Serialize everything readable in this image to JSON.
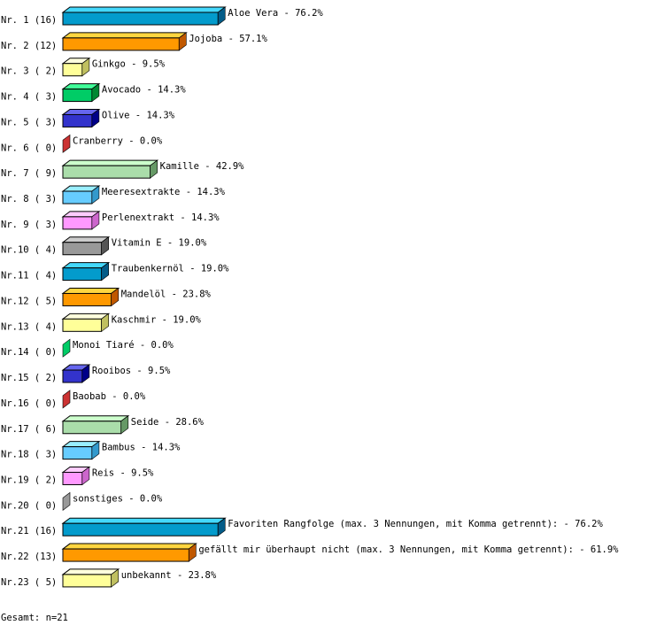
{
  "chart_data": {
    "type": "bar",
    "orientation": "horizontal",
    "style": "3d",
    "unit": "%",
    "categories": [
      "Aloe Vera",
      "Jojoba",
      "Ginkgo",
      "Avocado",
      "Olive",
      "Cranberry",
      "Kamille",
      "Meeresextrakte",
      "Perlenextrakt",
      "Vitamin E",
      "Traubenkernöl",
      "Mandelöl",
      "Kaschmir",
      "Monoi Tiaré",
      "Rooibos",
      "Baobab",
      "Seide",
      "Bambus",
      "Reis",
      "sonstiges",
      "Favoriten Rangfolge (max. 3 Nennungen, mit Komma getrennt):",
      "gefällt mir überhaupt nicht (max. 3 Nennungen, mit Komma getrennt):",
      "unbekannt"
    ],
    "row_labels": [
      "Nr. 1 (16)",
      "Nr. 2 (12)",
      "Nr. 3 ( 2)",
      "Nr. 4 ( 3)",
      "Nr. 5 ( 3)",
      "Nr. 6 ( 0)",
      "Nr. 7 ( 9)",
      "Nr. 8 ( 3)",
      "Nr. 9 ( 3)",
      "Nr.10 ( 4)",
      "Nr.11 ( 4)",
      "Nr.12 ( 5)",
      "Nr.13 ( 4)",
      "Nr.14 ( 0)",
      "Nr.15 ( 2)",
      "Nr.16 ( 0)",
      "Nr.17 ( 6)",
      "Nr.18 ( 3)",
      "Nr.19 ( 2)",
      "Nr.20 ( 0)",
      "Nr.21 (16)",
      "Nr.22 (13)",
      "Nr.23 ( 5)"
    ],
    "counts": [
      16,
      12,
      2,
      3,
      3,
      0,
      9,
      3,
      3,
      4,
      4,
      5,
      4,
      0,
      2,
      0,
      6,
      3,
      2,
      0,
      16,
      13,
      5
    ],
    "values": [
      76.2,
      57.1,
      9.5,
      14.3,
      14.3,
      0.0,
      42.9,
      14.3,
      14.3,
      19.0,
      19.0,
      23.8,
      19.0,
      0.0,
      9.5,
      0.0,
      28.6,
      14.3,
      9.5,
      0.0,
      76.2,
      61.9,
      23.8
    ],
    "value_labels": [
      "76.2%",
      "57.1%",
      "9.5%",
      "14.3%",
      "14.3%",
      "0.0%",
      "42.9%",
      "14.3%",
      "14.3%",
      "19.0%",
      "19.0%",
      "23.8%",
      "19.0%",
      "0.0%",
      "9.5%",
      "0.0%",
      "28.6%",
      "14.3%",
      "9.5%",
      "0.0%",
      "76.2%",
      "61.9%",
      "23.8%"
    ],
    "palette": [
      {
        "front": "#039bcc",
        "top": "#44d8fc",
        "side": "#035c88"
      },
      {
        "front": "#ff9900",
        "top": "#ffd640",
        "side": "#c05800"
      },
      {
        "front": "#ffff99",
        "top": "#ffffdd",
        "side": "#c0c060"
      },
      {
        "front": "#00cc66",
        "top": "#40ff99",
        "side": "#008833"
      },
      {
        "front": "#3333cc",
        "top": "#6666ee",
        "side": "#000088"
      },
      {
        "front": "#cc3333",
        "top": "#ee6666",
        "side": "#aa2222"
      },
      {
        "front": "#aaddaa",
        "top": "#ccffcc",
        "side": "#669966"
      },
      {
        "front": "#66ccff",
        "top": "#99eeff",
        "side": "#3399cc"
      },
      {
        "front": "#ff99ff",
        "top": "#ffccff",
        "side": "#cc66cc"
      },
      {
        "front": "#999999",
        "top": "#cccccc",
        "side": "#555555"
      }
    ],
    "footer": "Gesamt: n=21"
  }
}
